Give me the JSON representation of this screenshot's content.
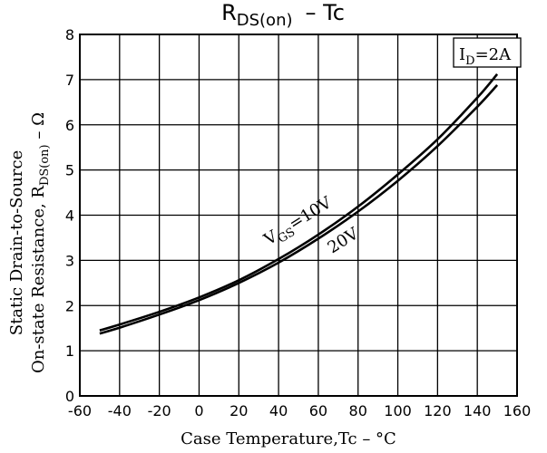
{
  "chart_data": {
    "type": "line",
    "title": "RDS(on) – Tc",
    "title_main": "R",
    "title_sub": "DS(on)",
    "title_rest": "–   Tc",
    "xlabel": "Case Temperature,Tc – °C",
    "ylabel_line1": "Static Drain-to-Source",
    "ylabel_line2_pre": "On-state Resistance, R",
    "ylabel_line2_sub": "DS(on)",
    "ylabel_line2_post": " – Ω",
    "xlim": [
      -60,
      160
    ],
    "ylim": [
      0,
      8
    ],
    "xticks": [
      -60,
      -40,
      -20,
      0,
      20,
      40,
      60,
      80,
      100,
      120,
      140,
      160
    ],
    "yticks": [
      0,
      1,
      2,
      3,
      4,
      5,
      6,
      7,
      8
    ],
    "grid": true,
    "series": [
      {
        "name": "VGS=10V",
        "x": [
          -50,
          -40,
          -20,
          0,
          20,
          40,
          60,
          80,
          100,
          120,
          140,
          150
        ],
        "y": [
          1.45,
          1.58,
          1.86,
          2.18,
          2.56,
          3.03,
          3.57,
          4.19,
          4.9,
          5.68,
          6.6,
          7.12
        ]
      },
      {
        "name": "20V",
        "x": [
          -50,
          -40,
          -20,
          0,
          20,
          40,
          60,
          80,
          100,
          120,
          140,
          150
        ],
        "y": [
          1.38,
          1.51,
          1.8,
          2.12,
          2.5,
          2.95,
          3.48,
          4.08,
          4.76,
          5.53,
          6.4,
          6.88
        ]
      }
    ],
    "annotations": {
      "condition_main": "I",
      "condition_sub": "D",
      "condition_rest": "=2A",
      "label_vgs_main": "V",
      "label_vgs_sub": "GS",
      "label_vgs_rest": "=10V",
      "label_20v": "20V"
    }
  }
}
